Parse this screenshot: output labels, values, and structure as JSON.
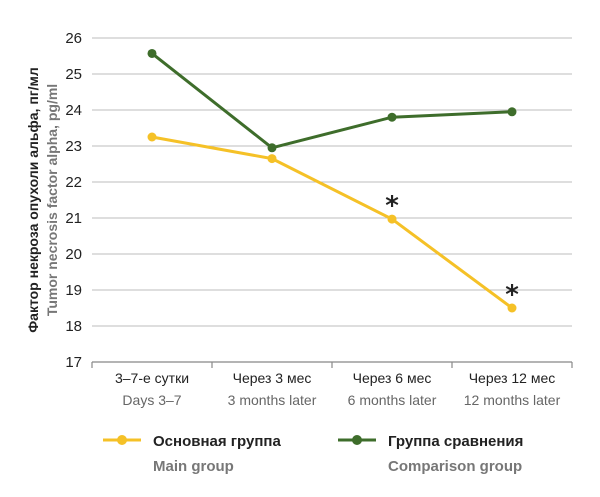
{
  "chart_data": {
    "type": "line",
    "ylabel": [
      "Фактор некроза опухоли альфа, пг/мл",
      "Tumor necrosis factor alpha, pg/ml"
    ],
    "xlabel": "",
    "ylim": [
      17,
      26
    ],
    "yticks": [
      "17",
      "18",
      "19",
      "20",
      "21",
      "22",
      "23",
      "24",
      "25",
      "26"
    ],
    "categories": [
      {
        "ru": "3–7-е сутки",
        "en": "Days 3–7"
      },
      {
        "ru": "Через 3 мес",
        "en": "3 months later"
      },
      {
        "ru": "Через 6 мес",
        "en": "6 months later"
      },
      {
        "ru": "Через 12 мес",
        "en": "12 months later"
      }
    ],
    "grid": true,
    "legend_position": "bottom",
    "series": [
      {
        "name": "Основная группа",
        "name_en": "Main group",
        "color": "#f5c127",
        "values": [
          23.25,
          22.65,
          20.97,
          18.5
        ]
      },
      {
        "name": "Группа сравнения",
        "name_en": "Comparison group",
        "color": "#3e6d2b",
        "values": [
          25.57,
          22.95,
          23.8,
          23.95
        ]
      }
    ],
    "annotations": [
      {
        "text": "*",
        "series": 0,
        "index": 2
      },
      {
        "text": "*",
        "series": 0,
        "index": 3
      }
    ]
  }
}
